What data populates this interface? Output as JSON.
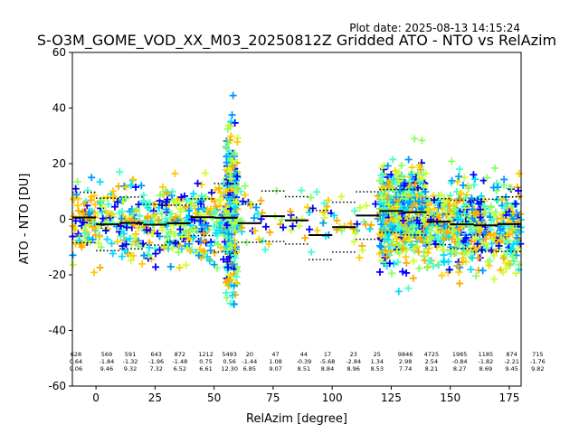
{
  "plot_date": "Plot date: 2025-08-13 14:15:24",
  "chart_data": {
    "type": "scatter",
    "title": "S-O3M_GOME_VOD_XX_M03_20250812Z Gridded ATO - NTO vs RelAzim",
    "xlabel": "RelAzim [degree]",
    "ylabel": "ATO - NTO [DU]",
    "xlim": [
      -10,
      180
    ],
    "ylim": [
      -60,
      60
    ],
    "xticks": [
      0,
      25,
      50,
      75,
      100,
      125,
      150,
      175
    ],
    "yticks": [
      -60,
      -40,
      -20,
      0,
      20,
      40,
      60
    ],
    "grid": false,
    "point_colors": [
      "#0000ff",
      "#0099ff",
      "#00ddff",
      "#44ffcc",
      "#88ff66",
      "#ccff33",
      "#ffcc00",
      "#ffaa00"
    ],
    "scatter_clusters": [
      {
        "x": [
          -10,
          58
        ],
        "y_mean": -1,
        "y_sd": 9
      },
      {
        "x": [
          55,
          60
        ],
        "y_mean": 2,
        "y_sd": 18
      },
      {
        "x": [
          60,
          120
        ],
        "y_mean": 0,
        "y_sd": 7
      },
      {
        "x": [
          120,
          140
        ],
        "y_mean": 2,
        "y_sd": 11
      },
      {
        "x": [
          140,
          180
        ],
        "y_mean": -2,
        "y_sd": 10
      }
    ],
    "bins": [
      {
        "center": -3.5,
        "x_from": -10,
        "x_to": 0,
        "count": "628",
        "mean": "0.64",
        "std": "9.06"
      },
      {
        "center": 9.5,
        "x_from": 0,
        "x_to": 10,
        "count": "569",
        "mean": "-1.84",
        "std": "9.46"
      },
      {
        "center": 19.5,
        "x_from": 10,
        "x_to": 20,
        "count": "591",
        "mean": "-1.32",
        "std": "9.32"
      },
      {
        "center": 30.5,
        "x_from": 20,
        "x_to": 30,
        "count": "643",
        "mean": "-1.96",
        "std": "7.32"
      },
      {
        "center": 40.5,
        "x_from": 30,
        "x_to": 40,
        "count": "872",
        "mean": "-1.48",
        "std": "6.52"
      },
      {
        "center": 51.5,
        "x_from": 40,
        "x_to": 50,
        "count": "1212",
        "mean": "0.75",
        "std": "6.61"
      },
      {
        "center": 61.5,
        "x_from": 50,
        "x_to": 60,
        "count": "5493",
        "mean": "0.56",
        "std": "12.30"
      },
      {
        "center": 70,
        "x_from": 60,
        "x_to": 70,
        "count": "20",
        "mean": "-1.44",
        "std": "6.85"
      },
      {
        "center": 81,
        "x_from": 70,
        "x_to": 80,
        "count": "47",
        "mean": "1.08",
        "std": "9.07"
      },
      {
        "center": 93,
        "x_from": 80,
        "x_to": 90,
        "count": "44",
        "mean": "-0.39",
        "std": "8.51"
      },
      {
        "center": 103,
        "x_from": 90,
        "x_to": 100,
        "count": "17",
        "mean": "-5.68",
        "std": "8.84"
      },
      {
        "center": 114,
        "x_from": 100,
        "x_to": 110,
        "count": "23",
        "mean": "-2.84",
        "std": "8.96"
      },
      {
        "center": 124,
        "x_from": 110,
        "x_to": 120,
        "count": "25",
        "mean": "1.34",
        "std": "8.53"
      },
      {
        "center": 136,
        "x_from": 120,
        "x_to": 130,
        "count": "9846",
        "mean": "2.98",
        "std": "7.74"
      },
      {
        "center": 147,
        "x_from": 130,
        "x_to": 140,
        "count": "4725",
        "mean": "2.54",
        "std": "8.21"
      },
      {
        "center": 159,
        "x_from": 140,
        "x_to": 150,
        "count": "1985",
        "mean": "-0.84",
        "std": "8.27"
      },
      {
        "center": 170,
        "x_from": 150,
        "x_to": 160,
        "count": "1185",
        "mean": "-1.82",
        "std": "8.69"
      },
      {
        "center": 181,
        "x_from": 160,
        "x_to": 170,
        "count": "874",
        "mean": "-2.21",
        "std": "9.45"
      },
      {
        "center": 192,
        "x_from": 170,
        "x_to": 180,
        "count": "715",
        "mean": "-1.76",
        "std": "9.82"
      }
    ]
  }
}
